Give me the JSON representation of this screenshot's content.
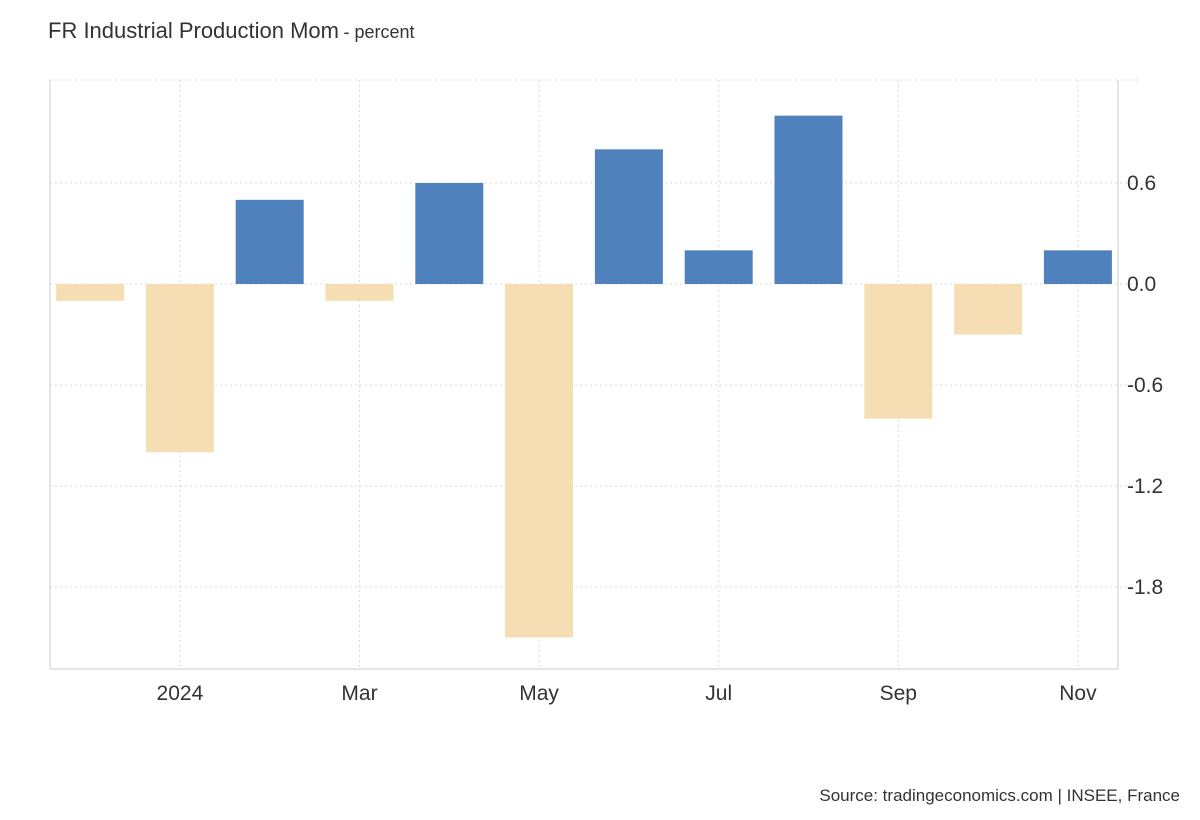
{
  "header": {
    "title": "FR Industrial Production Mom",
    "subtitle": "- percent"
  },
  "source": "Source: tradingeconomics.com | INSEE, France",
  "colors": {
    "positive": "#4f81bd",
    "negative": "#f5deb3",
    "grid": "#d8d8d8",
    "axis": "#cccccc"
  },
  "chart_data": {
    "type": "bar",
    "title": "FR Industrial Production Mom",
    "subtitle": "- percent",
    "xlabel": "",
    "ylabel": "",
    "categories": [
      "Dec 2023",
      "Jan 2024",
      "Feb 2024",
      "Mar 2024",
      "Apr 2024",
      "May 2024",
      "Jun 2024",
      "Jul 2024",
      "Aug 2024",
      "Sep 2024",
      "Oct 2024",
      "Nov 2024"
    ],
    "values": [
      -0.1,
      -1.0,
      0.5,
      -0.1,
      0.6,
      -2.1,
      0.8,
      0.2,
      1.0,
      -0.8,
      -0.3,
      0.2
    ],
    "ylim": [
      -2.3,
      1.2
    ],
    "yticks": [
      0.6,
      0.0,
      -0.6,
      -1.2,
      -1.8
    ],
    "ytick_labels": [
      "0.6",
      "0.0",
      "-0.6",
      "-1.2",
      "-1.8"
    ],
    "xtick_labels": [
      {
        "label": "2024",
        "category_index": 1
      },
      {
        "label": "Mar",
        "category_index": 3
      },
      {
        "label": "May",
        "category_index": 5
      },
      {
        "label": "Jul",
        "category_index": 7
      },
      {
        "label": "Sep",
        "category_index": 9
      },
      {
        "label": "Nov",
        "category_index": 11
      }
    ],
    "grid": true,
    "legend": "none",
    "y_axis_side": "right"
  }
}
